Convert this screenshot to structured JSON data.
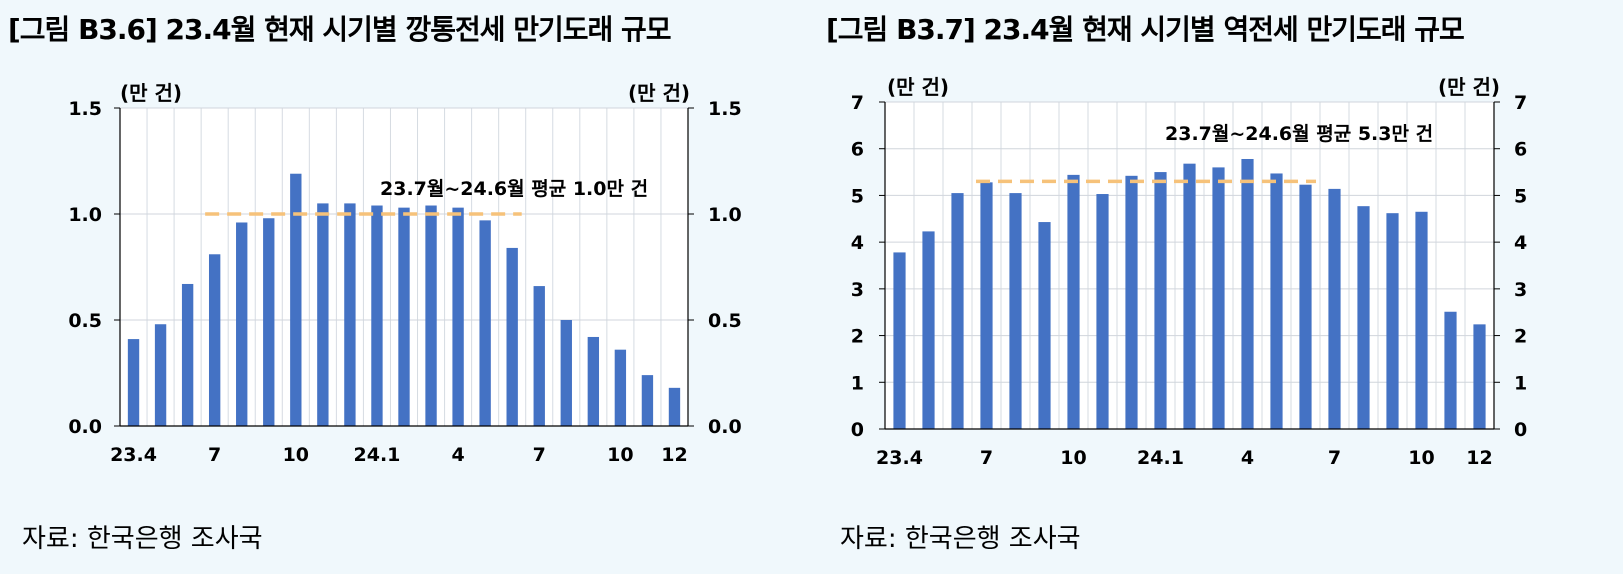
{
  "left": {
    "title": "[그림 B3.6] 23.4월 현재 시기별 깡통전세 만기도래 규모",
    "source": "자료: 한국은행 조사국",
    "chart_data": {
      "type": "bar",
      "ylabel_left": "(만 건)",
      "ylabel_right": "(만 건)",
      "ylim": [
        0,
        1.5
      ],
      "yticks": [
        "0.0",
        "0.5",
        "1.0",
        "1.5"
      ],
      "xtick_labels": [
        "23.4",
        "7",
        "10",
        "24.1",
        "4",
        "7",
        "10",
        "12"
      ],
      "xtick_index": [
        0,
        3,
        6,
        9,
        12,
        15,
        18,
        20
      ],
      "values": [
        0.41,
        0.48,
        0.67,
        0.81,
        0.96,
        0.98,
        1.19,
        1.05,
        1.05,
        1.04,
        1.03,
        1.04,
        1.03,
        0.97,
        0.84,
        0.66,
        0.5,
        0.42,
        0.36,
        0.24,
        0.18
      ],
      "bar_color": "#4472c4",
      "avg_line": {
        "value": 1.0,
        "from_index": 3,
        "to_index": 14,
        "color": "#f6c27a"
      },
      "annotation": "23.7월~24.6월 평균 1.0만 건",
      "grid": true
    }
  },
  "right": {
    "title": "[그림 B3.7] 23.4월 현재 시기별 역전세 만기도래 규모",
    "source": "자료: 한국은행 조사국",
    "chart_data": {
      "type": "bar",
      "ylabel_left": "(만 건)",
      "ylabel_right": "(만 건)",
      "ylim": [
        0,
        7
      ],
      "yticks": [
        "0",
        "1",
        "2",
        "3",
        "4",
        "5",
        "6",
        "7"
      ],
      "xtick_labels": [
        "23.4",
        "7",
        "10",
        "24.1",
        "4",
        "7",
        "10",
        "12"
      ],
      "xtick_index": [
        0,
        3,
        6,
        9,
        12,
        15,
        18,
        20
      ],
      "values": [
        3.78,
        4.23,
        5.05,
        5.28,
        5.05,
        4.43,
        5.44,
        5.03,
        5.42,
        5.5,
        5.68,
        5.6,
        5.78,
        5.47,
        5.23,
        5.14,
        4.77,
        4.62,
        4.65,
        2.51,
        2.24
      ],
      "bar_color": "#4472c4",
      "avg_line": {
        "value": 5.3,
        "from_index": 3,
        "to_index": 14,
        "color": "#f6c27a"
      },
      "annotation": "23.7월~24.6월 평균 5.3만 건",
      "grid": true
    }
  }
}
